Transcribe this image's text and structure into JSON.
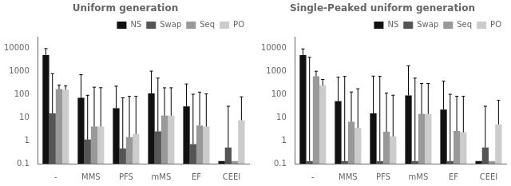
{
  "chart_data": [
    {
      "type": "bar",
      "title": "Uniform generation",
      "categories": [
        "-",
        "MMS",
        "PFS",
        "mMS",
        "EF",
        "CEEI"
      ],
      "series": [
        {
          "name": "NS",
          "color": "#111111",
          "values": [
            5000,
            70,
            25,
            110,
            30,
            0.13
          ],
          "err_hi": [
            4500,
            640,
            200,
            900,
            250,
            0
          ]
        },
        {
          "name": "Swap",
          "color": "#555555",
          "values": [
            15,
            1.1,
            0.45,
            2.5,
            0.7,
            0.5
          ],
          "err_hi": [
            770,
            90,
            70,
            500,
            100,
            30
          ]
        },
        {
          "name": "Seq",
          "color": "#999999",
          "values": [
            170,
            4.0,
            1.4,
            12,
            4.5,
            0.13
          ],
          "err_hi": [
            80,
            200,
            80,
            180,
            120,
            0
          ]
        },
        {
          "name": "PO",
          "color": "#cccccc",
          "values": [
            160,
            4.0,
            1.9,
            12,
            4.0,
            7.5
          ],
          "err_hi": [
            70,
            190,
            80,
            180,
            100,
            70
          ]
        }
      ],
      "ylim": [
        0.1,
        30000
      ],
      "yticks": [
        0.1,
        1,
        10,
        100,
        1000,
        10000
      ],
      "log": "y",
      "grid": false,
      "legend": "upper right"
    },
    {
      "type": "bar",
      "title": "Single-Peaked uniform generation",
      "categories": [
        "-",
        "MMS",
        "PFS",
        "mMS",
        "EF",
        "CEEI"
      ],
      "series": [
        {
          "name": "NS",
          "color": "#111111",
          "values": [
            5000,
            50,
            15,
            90,
            22,
            0.13
          ],
          "err_hi": [
            4200,
            500,
            600,
            1600,
            350,
            0
          ]
        },
        {
          "name": "Swap",
          "color": "#555555",
          "values": [
            0.13,
            0.13,
            0.13,
            0.13,
            0.13,
            0.5
          ],
          "err_hi": [
            4000,
            600,
            600,
            500,
            100,
            30
          ]
        },
        {
          "name": "Seq",
          "color": "#999999",
          "values": [
            600,
            6.5,
            2.4,
            14,
            2.6,
            0.13
          ],
          "err_hi": [
            400,
            120,
            110,
            280,
            80,
            0
          ]
        },
        {
          "name": "PO",
          "color": "#cccccc",
          "values": [
            240,
            3.5,
            1.5,
            14,
            2.3,
            5.0
          ],
          "err_hi": [
            200,
            170,
            90,
            280,
            80,
            50
          ]
        }
      ],
      "ylim": [
        0.1,
        30000
      ],
      "yticks": [
        0.1,
        1,
        10,
        100,
        1000,
        10000
      ],
      "log": "y",
      "grid": false,
      "legend": "upper right"
    }
  ]
}
